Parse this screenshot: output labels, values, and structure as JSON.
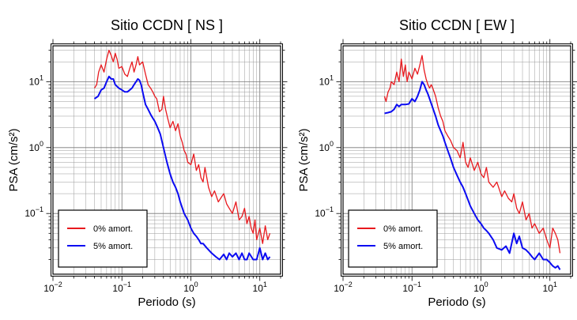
{
  "chart_data": [
    {
      "type": "line",
      "title": "Sitio CCDN [ NS ]",
      "xlabel": "Periodo (s)",
      "ylabel": "PSA (cm/s²)",
      "x_scale": "log",
      "y_scale": "log",
      "xlim": [
        0.01,
        20
      ],
      "ylim": [
        0.012,
        35
      ],
      "x_tick_labels": [
        {
          "base": "10",
          "exp": "−2"
        },
        {
          "base": "10",
          "exp": "−1"
        },
        {
          "base": "10",
          "exp": "0"
        },
        {
          "base": "10",
          "exp": "1"
        }
      ],
      "y_tick_labels": [
        {
          "base": "10",
          "exp": "−1"
        },
        {
          "base": "10",
          "exp": "0"
        },
        {
          "base": "10",
          "exp": "1"
        }
      ],
      "grid": true,
      "legend_position": "bottom-left",
      "series": [
        {
          "name": "0% amort.",
          "color": "#e8191e",
          "x": [
            0.04,
            0.043,
            0.046,
            0.05,
            0.055,
            0.06,
            0.065,
            0.07,
            0.075,
            0.08,
            0.085,
            0.09,
            0.1,
            0.11,
            0.12,
            0.13,
            0.14,
            0.15,
            0.16,
            0.17,
            0.18,
            0.2,
            0.22,
            0.24,
            0.26,
            0.28,
            0.3,
            0.32,
            0.35,
            0.38,
            0.4,
            0.43,
            0.46,
            0.5,
            0.55,
            0.6,
            0.65,
            0.7,
            0.75,
            0.8,
            0.85,
            0.9,
            1.0,
            1.1,
            1.2,
            1.3,
            1.4,
            1.5,
            1.6,
            1.8,
            2.0,
            2.2,
            2.5,
            2.8,
            3.0,
            3.3,
            3.6,
            4.0,
            4.5,
            5.0,
            5.5,
            6.0,
            6.5,
            7.0,
            7.5,
            8.0,
            8.5,
            9.0,
            10,
            11,
            12,
            13,
            14
          ],
          "y": [
            8,
            9,
            14,
            18,
            14,
            22,
            30,
            25,
            20,
            27,
            22,
            16,
            17,
            13,
            12,
            16,
            20,
            14,
            18,
            24,
            18,
            20,
            13,
            9,
            8,
            7,
            6,
            5.5,
            3.5,
            3.8,
            6,
            3.8,
            2.8,
            2,
            2.5,
            1.8,
            2.3,
            1.5,
            1.2,
            0.9,
            0.8,
            0.6,
            0.55,
            0.8,
            0.45,
            0.55,
            0.35,
            0.3,
            0.5,
            0.25,
            0.18,
            0.22,
            0.15,
            0.18,
            0.2,
            0.14,
            0.12,
            0.1,
            0.15,
            0.08,
            0.09,
            0.12,
            0.07,
            0.09,
            0.06,
            0.05,
            0.08,
            0.04,
            0.06,
            0.035,
            0.065,
            0.04,
            0.05
          ]
        },
        {
          "name": "5% amort.",
          "color": "#0b0bf2",
          "x": [
            0.04,
            0.045,
            0.05,
            0.055,
            0.06,
            0.065,
            0.07,
            0.075,
            0.08,
            0.09,
            0.1,
            0.11,
            0.12,
            0.13,
            0.14,
            0.15,
            0.16,
            0.17,
            0.18,
            0.19,
            0.2,
            0.22,
            0.24,
            0.26,
            0.28,
            0.3,
            0.33,
            0.36,
            0.4,
            0.45,
            0.5,
            0.55,
            0.6,
            0.65,
            0.7,
            0.8,
            0.9,
            1.0,
            1.1,
            1.2,
            1.3,
            1.4,
            1.5,
            1.7,
            2.0,
            2.3,
            2.6,
            3.0,
            3.3,
            3.6,
            4.0,
            4.5,
            5.0,
            5.5,
            6.0,
            6.5,
            7.0,
            8.0,
            9.0,
            10,
            11,
            12,
            13,
            14
          ],
          "y": [
            5.5,
            6,
            7.5,
            8,
            10,
            12,
            11,
            11,
            9,
            8,
            7.5,
            7,
            7,
            7.5,
            8,
            9,
            10,
            11,
            10.5,
            9,
            7,
            4.5,
            3.8,
            3.2,
            2.8,
            2.5,
            2.0,
            1.6,
            1.0,
            0.6,
            0.4,
            0.3,
            0.25,
            0.2,
            0.15,
            0.1,
            0.08,
            0.06,
            0.05,
            0.045,
            0.04,
            0.035,
            0.035,
            0.03,
            0.025,
            0.022,
            0.02,
            0.024,
            0.02,
            0.025,
            0.022,
            0.025,
            0.02,
            0.025,
            0.02,
            0.02,
            0.025,
            0.02,
            0.02,
            0.03,
            0.02,
            0.025,
            0.02,
            0.022
          ]
        }
      ]
    },
    {
      "type": "line",
      "title": "Sitio CCDN [ EW ]",
      "xlabel": "Periodo (s)",
      "ylabel": "PSA (cm/s²)",
      "x_scale": "log",
      "y_scale": "log",
      "xlim": [
        0.01,
        20
      ],
      "ylim": [
        0.012,
        35
      ],
      "x_tick_labels": [
        {
          "base": "10",
          "exp": "−2"
        },
        {
          "base": "10",
          "exp": "−1"
        },
        {
          "base": "10",
          "exp": "0"
        },
        {
          "base": "10",
          "exp": "1"
        }
      ],
      "y_tick_labels": [
        {
          "base": "10",
          "exp": "−1"
        },
        {
          "base": "10",
          "exp": "0"
        },
        {
          "base": "10",
          "exp": "1"
        }
      ],
      "grid": true,
      "legend_position": "bottom-left",
      "series": [
        {
          "name": "0% amort.",
          "color": "#e8191e",
          "x": [
            0.04,
            0.042,
            0.045,
            0.048,
            0.05,
            0.055,
            0.06,
            0.065,
            0.07,
            0.075,
            0.08,
            0.085,
            0.09,
            0.1,
            0.11,
            0.12,
            0.13,
            0.14,
            0.15,
            0.16,
            0.17,
            0.18,
            0.19,
            0.2,
            0.22,
            0.24,
            0.26,
            0.28,
            0.3,
            0.33,
            0.36,
            0.4,
            0.45,
            0.5,
            0.55,
            0.6,
            0.65,
            0.7,
            0.8,
            0.9,
            1.0,
            1.1,
            1.2,
            1.3,
            1.5,
            1.7,
            2.0,
            2.2,
            2.5,
            2.8,
            3.0,
            3.3,
            3.6,
            4.0,
            4.5,
            5.0,
            5.5,
            6.0,
            7.0,
            8.0,
            9.0,
            10,
            11,
            12,
            13,
            14
          ],
          "y": [
            6,
            5,
            7,
            8,
            10,
            9,
            14,
            10,
            22,
            12,
            18,
            10,
            14,
            11,
            16,
            13,
            18,
            25,
            15,
            11,
            9,
            8,
            9,
            8,
            6,
            4,
            3,
            2.5,
            1.8,
            1.5,
            1.3,
            1.0,
            0.9,
            0.7,
            1.2,
            0.6,
            0.5,
            0.7,
            0.45,
            0.6,
            0.4,
            0.35,
            0.5,
            0.3,
            0.25,
            0.3,
            0.18,
            0.22,
            0.17,
            0.15,
            0.2,
            0.12,
            0.1,
            0.15,
            0.08,
            0.1,
            0.06,
            0.07,
            0.05,
            0.06,
            0.04,
            0.03,
            0.06,
            0.05,
            0.04,
            0.025
          ]
        },
        {
          "name": "5% amort.",
          "color": "#0b0bf2",
          "x": [
            0.04,
            0.045,
            0.05,
            0.055,
            0.06,
            0.065,
            0.07,
            0.08,
            0.09,
            0.1,
            0.11,
            0.12,
            0.13,
            0.14,
            0.15,
            0.16,
            0.17,
            0.18,
            0.2,
            0.22,
            0.24,
            0.26,
            0.28,
            0.3,
            0.33,
            0.36,
            0.4,
            0.45,
            0.5,
            0.55,
            0.6,
            0.65,
            0.7,
            0.8,
            0.9,
            1.0,
            1.1,
            1.2,
            1.3,
            1.5,
            1.7,
            2.0,
            2.3,
            2.6,
            3.0,
            3.3,
            3.6,
            4.0,
            4.5,
            5.0,
            5.5,
            6.0,
            7.0,
            8.0,
            9.0,
            10,
            11,
            12,
            13,
            14
          ],
          "y": [
            3.3,
            3.4,
            3.5,
            3.8,
            4.5,
            4.2,
            4.5,
            4.5,
            4.6,
            5.5,
            5.0,
            6.0,
            7.5,
            10,
            9,
            7.5,
            6.5,
            5.5,
            4,
            3,
            2.2,
            1.8,
            1.5,
            1.2,
            0.9,
            0.7,
            0.5,
            0.38,
            0.3,
            0.25,
            0.2,
            0.16,
            0.13,
            0.1,
            0.08,
            0.07,
            0.06,
            0.055,
            0.05,
            0.04,
            0.03,
            0.028,
            0.032,
            0.025,
            0.05,
            0.035,
            0.045,
            0.03,
            0.028,
            0.025,
            0.022,
            0.02,
            0.025,
            0.02,
            0.02,
            0.018,
            0.016,
            0.015,
            0.016,
            0.014
          ]
        }
      ]
    }
  ]
}
